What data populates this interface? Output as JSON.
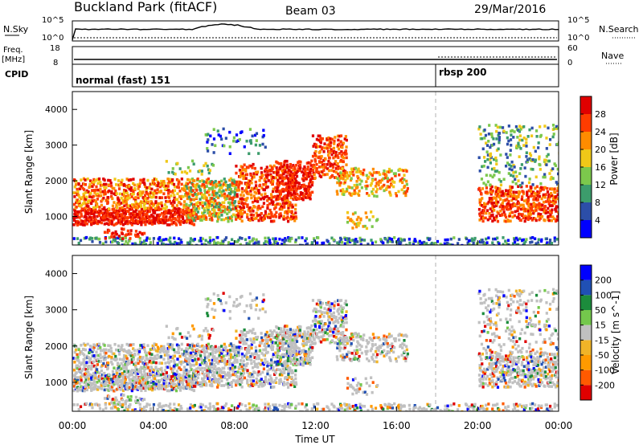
{
  "header": {
    "station": "Buckland Park (fitACF)",
    "beam": "Beam 03",
    "date": "29/Mar/2016"
  },
  "left_labels": {
    "nsky": "N.Sky",
    "nsky_top": "10^5",
    "nsky_bottom": "10^0",
    "freq": "Freq.",
    "freq_unit": "[MHz]",
    "freq_top": "18",
    "freq_bottom": "8",
    "cpid": "CPID"
  },
  "right_labels": {
    "nsearch_top": "10^5",
    "nsearch_bottom": "10^0",
    "nsearch": "N.Search",
    "nave_top": "60",
    "nave_bottom": "0",
    "nave": "Nave"
  },
  "cpid_segments": [
    {
      "label": "normal (fast) 151",
      "start_hour": 0
    },
    {
      "label": "rbsp 200",
      "start_hour": 18
    }
  ],
  "colors": {
    "power": [
      "#0000ff",
      "#2c4ea8",
      "#3c9c6c",
      "#7cc84c",
      "#f0c818",
      "#ff8c00",
      "#ff3c00",
      "#e00000"
    ],
    "velocity": [
      "#e00000",
      "#ff5a00",
      "#ff9a00",
      "#f0b428",
      "#c0c0c0",
      "#74c84c",
      "#1c8c3c",
      "#2050b4",
      "#0000ff"
    ]
  },
  "chart_data": [
    {
      "type": "heatmap",
      "name": "power",
      "xlabel": "",
      "ylabel": "Slant Range [km]",
      "xlim": [
        0,
        24
      ],
      "ylim": [
        200,
        4500
      ],
      "yticks": [
        "1000",
        "2000",
        "3000",
        "4000"
      ],
      "colorbar_label": "Power [dB]",
      "colorbar_ticks": [
        "4",
        "8",
        "12",
        "16",
        "20",
        "24",
        "28"
      ],
      "colorbar_range": [
        0,
        32
      ]
    },
    {
      "type": "heatmap",
      "name": "velocity",
      "xlabel": "Time UT",
      "ylabel": "Slant Range [km]",
      "xlim": [
        0,
        24
      ],
      "ylim": [
        200,
        4500
      ],
      "xticks": [
        "00:00",
        "04:00",
        "08:00",
        "12:00",
        "16:00",
        "20:00",
        "00:00"
      ],
      "yticks": [
        "1000",
        "2000",
        "3000",
        "4000"
      ],
      "colorbar_label": "Velocity [m s^-1]",
      "colorbar_ticks": [
        "200",
        "100",
        "50",
        "15",
        "-15",
        "-50",
        "-100",
        "-200"
      ]
    }
  ]
}
